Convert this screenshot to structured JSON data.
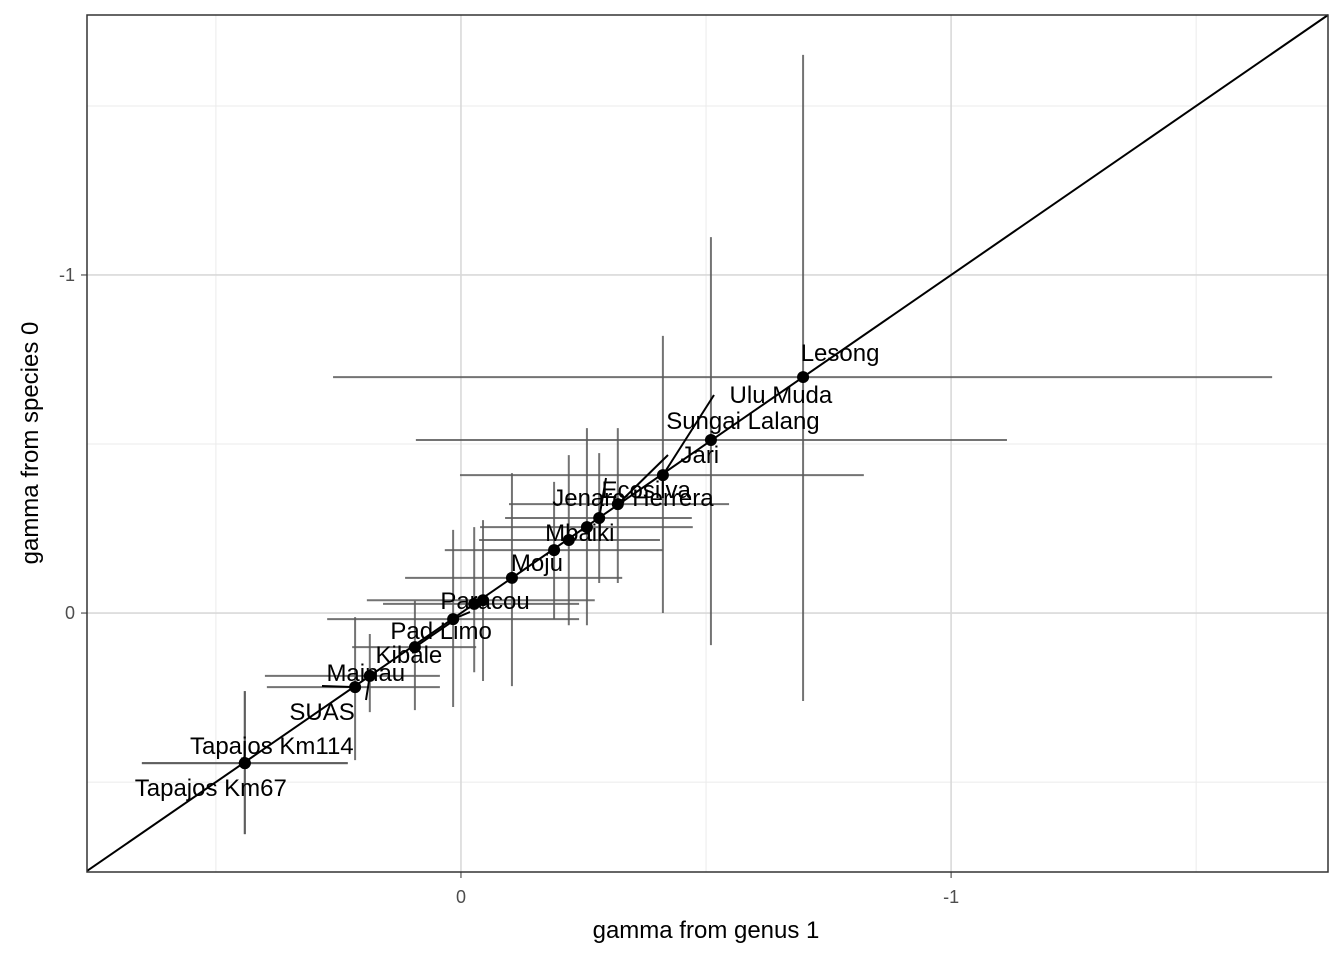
{
  "chart_data": {
    "type": "scatter",
    "xlabel": "gamma from genus 1",
    "ylabel": "gamma from species 0",
    "labels": [
      "Lesong",
      "Sungai Lalang",
      "Ulu Muda",
      "Jari",
      "Ecosilva",
      "Jenaro Herrera",
      "Mbaiki",
      null,
      "Moju",
      "Paracou",
      null,
      "Pad Limo",
      "Kibale",
      "Mainau",
      "SUAS",
      "Tapajos Km114",
      "Tapajos Km67"
    ],
    "x": [
      -0.698,
      -0.51,
      -0.412,
      -0.32,
      -0.282,
      -0.257,
      -0.22,
      -0.19,
      -0.104,
      -0.045,
      -0.027,
      0.016,
      0.094,
      0.186,
      0.216,
      0.441,
      0.441
    ],
    "y": [
      -0.698,
      -0.512,
      -0.408,
      -0.322,
      -0.281,
      -0.254,
      -0.216,
      -0.186,
      -0.104,
      -0.038,
      -0.027,
      0.018,
      0.101,
      0.186,
      0.219,
      0.444,
      0.444
    ],
    "xlo": [
      0.261,
      0.092,
      0.002,
      -0.098,
      -0.09,
      -0.039,
      -0.037,
      0.033,
      0.114,
      0.192,
      0.159,
      0.273,
      0.222,
      0.4,
      0.396,
      0.651,
      0.651
    ],
    "xhi": [
      -1.655,
      -1.114,
      -0.822,
      -0.547,
      -0.471,
      -0.473,
      -0.406,
      -0.412,
      -0.329,
      -0.273,
      -0.241,
      -0.241,
      -0.031,
      0.043,
      0.043,
      0.231,
      0.231
    ],
    "ylo": [
      -1.651,
      -1.112,
      -0.82,
      -0.547,
      -0.473,
      -0.547,
      -0.467,
      -0.388,
      -0.414,
      -0.275,
      -0.254,
      -0.246,
      -0.036,
      0.062,
      0.012,
      0.231,
      0.231
    ],
    "yhi": [
      0.26,
      0.095,
      0,
      -0.089,
      -0.089,
      0.036,
      0.036,
      0.018,
      0.216,
      0.201,
      0.175,
      0.278,
      0.287,
      0.293,
      0.435,
      0.654,
      0.654
    ],
    "xlim": [
      0.763,
      -1.769
    ],
    "ylim": [
      0.766,
      -1.769
    ],
    "xticks": [
      0,
      -1
    ],
    "yticks": [
      0,
      -1
    ],
    "color": "#000000",
    "error_color": "#5a5a5a",
    "grid": true
  }
}
